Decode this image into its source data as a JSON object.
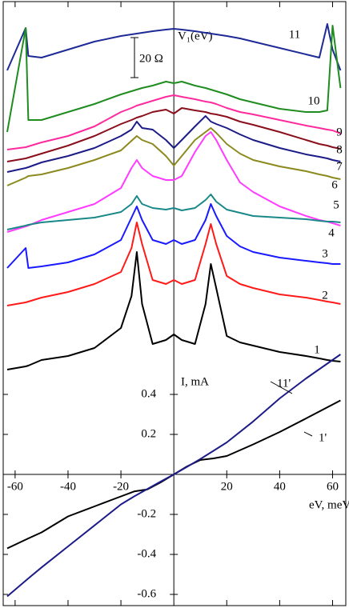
{
  "chart_data": [
    {
      "type": "line",
      "annotations": [
        "V₁(eV)",
        "20 Ω"
      ],
      "scale_bar": 20,
      "x": [
        -63,
        -56,
        -55,
        -50,
        -40,
        -30,
        -20,
        -16,
        -14,
        -12,
        -8,
        -3,
        0,
        3,
        8,
        12,
        14,
        16,
        20,
        25,
        30,
        40,
        50,
        55,
        58,
        60,
        63
      ],
      "xlim": [
        -64.5,
        65
      ],
      "ylim": [
        0,
        187.2
      ],
      "series": [
        {
          "name": "11",
          "color": "#1e2a96",
          "values": [
            152.8,
            174,
            160,
            159.2,
            163.2,
            167.2,
            170,
            170.8,
            171.2,
            171.6,
            172.4,
            173.2,
            173.6,
            173.2,
            172.4,
            171.6,
            171.2,
            170.8,
            170,
            168.8,
            167.2,
            164,
            160.8,
            159.2,
            176,
            163.2,
            152.8
          ]
        },
        {
          "name": "10",
          "color": "#1f8c1f",
          "values": [
            122,
            174,
            128,
            128,
            132,
            136,
            140.8,
            142.4,
            143.2,
            144,
            145.2,
            147.2,
            146.4,
            147.2,
            145.2,
            144,
            143.2,
            142.4,
            140.8,
            138.4,
            136.8,
            133.6,
            132,
            132,
            132.8,
            175.2,
            144
          ]
        },
        {
          "name": "9",
          "color": "#ff2a9d",
          "values": [
            113.2,
            114.4,
            114.8,
            116.8,
            120,
            124.8,
            132,
            134,
            135.2,
            136,
            137.6,
            139.6,
            140.4,
            139.6,
            138.4,
            137.2,
            136.8,
            136,
            134,
            132,
            130.8,
            128,
            125.2,
            124,
            123.2,
            122.8,
            121.2
          ]
        },
        {
          "name": "8",
          "color": "#8a0f1c",
          "values": [
            107.2,
            108.8,
            109.2,
            111.2,
            115.2,
            120,
            126,
            128,
            129.2,
            130,
            132,
            133.2,
            131.2,
            134,
            132.8,
            132,
            131.2,
            130.8,
            129.6,
            127.2,
            125.6,
            122,
            118,
            116,
            115.2,
            114.4,
            113.6
          ]
        },
        {
          "name": "7",
          "color": "#1c1c88",
          "values": [
            102,
            104,
            104.4,
            106.8,
            110,
            114,
            120,
            123.2,
            127.2,
            124,
            123.2,
            118,
            114,
            118,
            124.8,
            130,
            127.2,
            126,
            124,
            120.8,
            118,
            114,
            110.8,
            109.6,
            108.8,
            108,
            107.2
          ]
        },
        {
          "name": "6",
          "color": "#8c8a1e",
          "values": [
            95.2,
            99.2,
            100,
            100.8,
            104,
            108,
            112.8,
            117.6,
            120,
            118,
            116,
            110,
            105.2,
            110,
            118,
            122,
            124,
            121.6,
            116,
            111.2,
            108,
            104.8,
            102.4,
            100.8,
            100,
            99.2,
            98.4
          ]
        },
        {
          "name": "5",
          "color": "#ff3cff",
          "values": [
            72,
            74.8,
            75.2,
            78,
            82,
            86,
            94,
            104,
            108,
            104,
            100,
            98,
            98,
            100,
            112,
            120,
            122,
            118,
            108,
            96.8,
            92,
            84.8,
            80,
            78,
            77.2,
            76.4,
            75.2
          ]
        },
        {
          "name": "4",
          "color": "#1a8888",
          "values": [
            73.2,
            75.2,
            75.6,
            76.8,
            78,
            79.2,
            82,
            86,
            90,
            86,
            84,
            83.2,
            84,
            82.8,
            84,
            88,
            90.8,
            87.2,
            83.2,
            81.6,
            80,
            79.2,
            78.4,
            77.6,
            77.2,
            77.2,
            76.8
          ]
        },
        {
          "name": "3",
          "color": "#1a1aff",
          "values": [
            54,
            64,
            54,
            54.8,
            56.8,
            60.8,
            68,
            79.2,
            84.8,
            78,
            68,
            66,
            68,
            66,
            68,
            78,
            86,
            80,
            70,
            64.8,
            62,
            59.2,
            57.6,
            56.8,
            56.4,
            56,
            56
          ]
        },
        {
          "name": "2",
          "color": "#ff1a1a",
          "values": [
            35.2,
            36.8,
            37.2,
            39.2,
            42,
            46,
            52,
            64,
            76.8,
            66,
            48,
            46,
            48,
            46,
            48,
            66,
            76,
            66,
            50,
            46,
            44,
            40.8,
            39.2,
            38,
            37.2,
            36.8,
            36
          ]
        },
        {
          "name": "1",
          "color": "#000000",
          "values": [
            3.2,
            4.8,
            5.2,
            8,
            10,
            14,
            24,
            40,
            62,
            36,
            16,
            18,
            20.8,
            18,
            16,
            36,
            56,
            44,
            20,
            16.8,
            15.2,
            12,
            10,
            8.8,
            8,
            7.6,
            7.2
          ]
        }
      ]
    },
    {
      "type": "line",
      "xlabel": "eV, meV",
      "ylabel": "I, mA",
      "x": [
        -63,
        -55,
        -50,
        -40,
        -30,
        -20,
        -15,
        -10,
        -5,
        0,
        5,
        10,
        15,
        20,
        30,
        40,
        50,
        63
      ],
      "xlim": [
        -64.5,
        65
      ],
      "ylim": [
        -0.656,
        2.364
      ],
      "xticks": [
        -60,
        -40,
        -20,
        20,
        40,
        60
      ],
      "yticks": [
        0.4,
        0.2,
        -0.2,
        -0.4,
        -0.6
      ],
      "series": [
        {
          "name": "1'",
          "color": "#000000",
          "values": [
            -0.37,
            -0.32,
            -0.29,
            -0.21,
            -0.16,
            -0.11,
            -0.085,
            -0.075,
            -0.04,
            0,
            0.04,
            0.072,
            0.08,
            0.092,
            0.15,
            0.212,
            0.28,
            0.37
          ]
        },
        {
          "name": "11'",
          "color": "#1c1c88",
          "values": [
            -0.61,
            -0.52,
            -0.465,
            -0.36,
            -0.255,
            -0.15,
            -0.11,
            -0.073,
            -0.036,
            0,
            0.038,
            0.077,
            0.118,
            0.16,
            0.265,
            0.38,
            0.48,
            0.6
          ]
        }
      ]
    }
  ]
}
